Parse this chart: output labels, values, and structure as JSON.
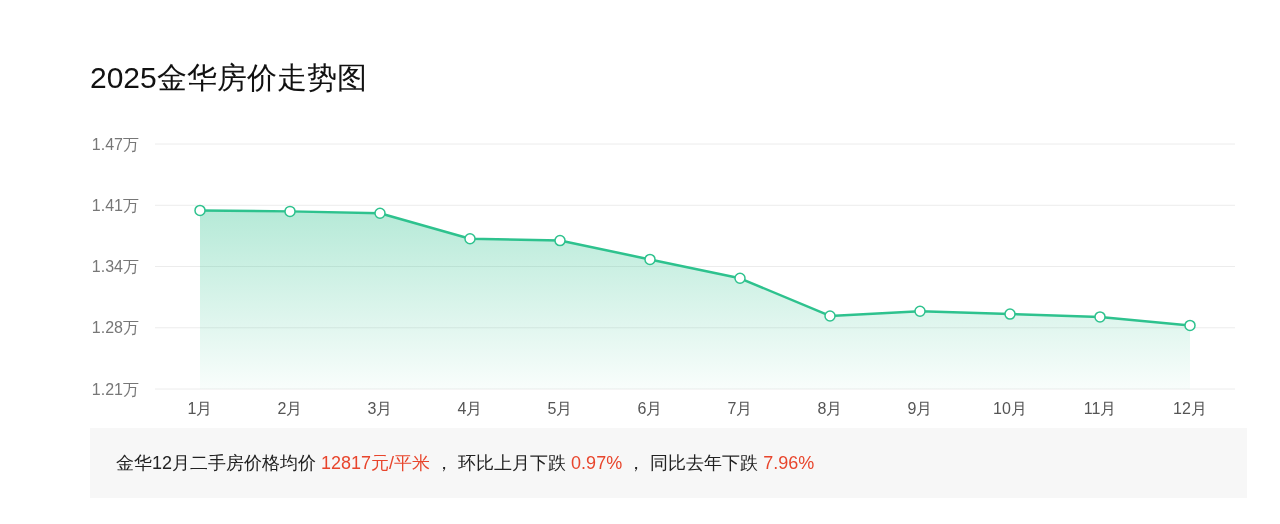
{
  "chart_data": {
    "type": "area",
    "title": "2025金华房价走势图",
    "categories": [
      "1月",
      "2月",
      "3月",
      "4月",
      "5月",
      "6月",
      "7月",
      "8月",
      "9月",
      "10月",
      "11月",
      "12月"
    ],
    "series": [
      {
        "color": "#2ec28e",
        "values": [
          1.404,
          1.403,
          1.401,
          1.374,
          1.372,
          1.352,
          1.332,
          1.292,
          1.297,
          1.294,
          1.291,
          1.282
        ]
      }
    ],
    "ylim": [
      1.2145,
      1.4745
    ],
    "yticks": [
      {
        "value": 1.2145,
        "label": "1.21万"
      },
      {
        "value": 1.2795,
        "label": "1.28万"
      },
      {
        "value": 1.3445,
        "label": "1.34万"
      },
      {
        "value": 1.4095,
        "label": "1.41万"
      },
      {
        "value": 1.4745,
        "label": "1.47万"
      }
    ],
    "grid": "y",
    "marker": "circle",
    "annotations": [
      "金华12月二手房价格均价 ",
      "12817元/平米",
      " ， 环比上月下跌 ",
      "0.97%",
      " ， 同比去年下跌 ",
      "7.96%"
    ]
  }
}
